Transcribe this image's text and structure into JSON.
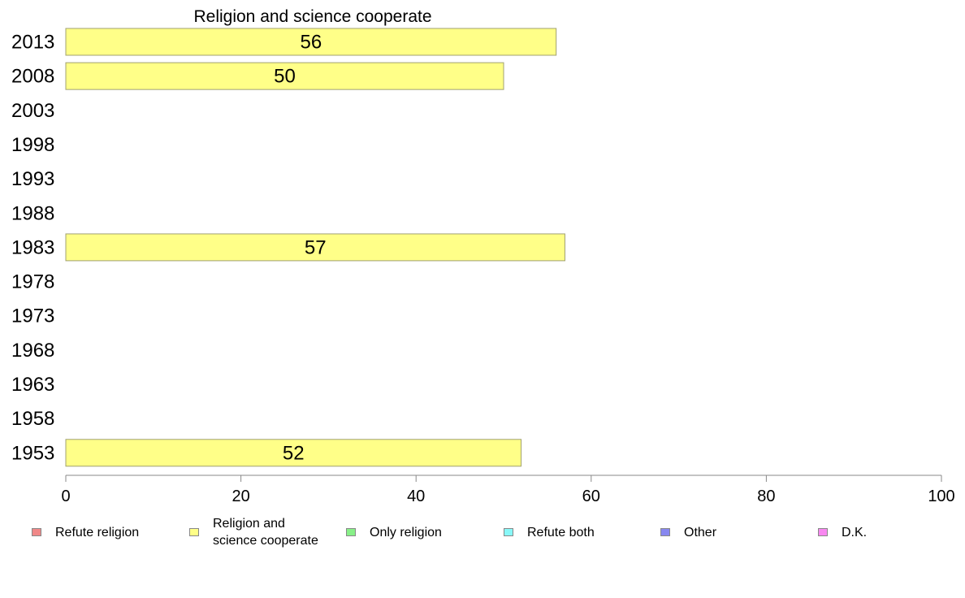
{
  "chart_data": {
    "type": "bar",
    "orientation": "horizontal",
    "title": "Religion and science cooperate",
    "categories": [
      "2013",
      "2008",
      "2003",
      "1998",
      "1993",
      "1988",
      "1983",
      "1978",
      "1973",
      "1968",
      "1963",
      "1958",
      "1953"
    ],
    "series": [
      {
        "name": "Religion and science cooperate",
        "color": "#ffff88",
        "values": [
          56,
          50,
          null,
          null,
          null,
          null,
          57,
          null,
          null,
          null,
          null,
          null,
          52
        ]
      }
    ],
    "xlim": [
      0,
      100
    ],
    "xticks": [
      "0",
      "20",
      "40",
      "60",
      "80",
      100
    ],
    "grid": false,
    "legend_position": "bottom",
    "legend": [
      {
        "label": "Refute religion",
        "color": "#f08888"
      },
      {
        "label": "Religion and\nscience cooperate",
        "color": "#ffff88"
      },
      {
        "label": "Only religion",
        "color": "#88f088"
      },
      {
        "label": "Refute both",
        "color": "#88f8f8"
      },
      {
        "label": "Other",
        "color": "#8888f0"
      },
      {
        "label": "D.K.",
        "color": "#f888f0"
      }
    ]
  }
}
